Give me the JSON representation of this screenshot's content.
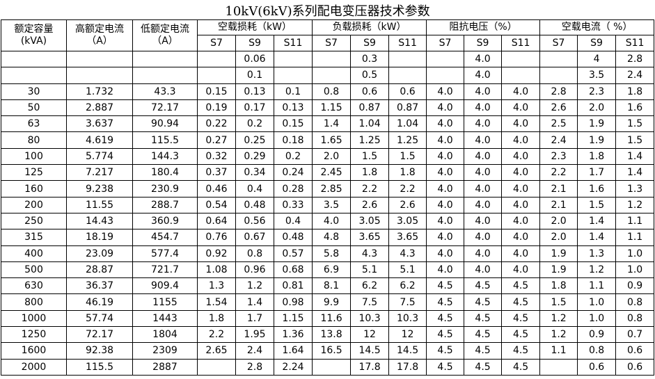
{
  "title": "10kV(6kV)系列配电变压器技术参数",
  "header": {
    "fixed": [
      {
        "label": "额定容量",
        "unit": "(kVA)"
      },
      {
        "label": "高额定电流",
        "unit": "（A）"
      },
      {
        "label": "低额定电流",
        "unit": "（A）"
      }
    ],
    "groups": [
      {
        "label": "空载损耗（kW）",
        "sub": [
          "S7",
          "S9",
          "S11"
        ]
      },
      {
        "label": "负载损耗（kW）",
        "sub": [
          "S7",
          "S9",
          "S11"
        ]
      },
      {
        "label": "阻抗电压（%）",
        "sub": [
          "S7",
          "S9",
          "S11"
        ]
      },
      {
        "label": "空载电流（ %）",
        "sub": [
          "S7",
          "S9",
          "S11"
        ]
      }
    ]
  },
  "table": {
    "rows": [
      [
        null,
        null,
        null,
        null,
        "0.06",
        null,
        null,
        "0.3",
        null,
        null,
        "4.0",
        null,
        null,
        "4",
        "2.8"
      ],
      [
        null,
        null,
        null,
        null,
        "0.1",
        null,
        null,
        "0.5",
        null,
        null,
        "4.0",
        null,
        null,
        "3.5",
        "2.4"
      ],
      [
        "30",
        "1.732",
        "43.3",
        "0.15",
        "0.13",
        "0.1",
        "0.8",
        "0.6",
        "0.6",
        "4.0",
        "4.0",
        "4.0",
        "2.8",
        "2.3",
        "1.8"
      ],
      [
        "50",
        "2.887",
        "72.17",
        "0.19",
        "0.17",
        "0.13",
        "1.15",
        "0.87",
        "0.87",
        "4.0",
        "4.0",
        "4.0",
        "2.6",
        "2.0",
        "1.6"
      ],
      [
        "63",
        "3.637",
        "90.94",
        "0.22",
        "0.2",
        "0.15",
        "1.4",
        "1.04",
        "1.04",
        "4.0",
        "4.0",
        "4.0",
        "2.5",
        "1.9",
        "1.5"
      ],
      [
        "80",
        "4.619",
        "115.5",
        "0.27",
        "0.25",
        "0.18",
        "1.65",
        "1.25",
        "1.25",
        "4.0",
        "4.0",
        "4.0",
        "2.4",
        "1.9",
        "1.5"
      ],
      [
        "100",
        "5.774",
        "144.3",
        "0.32",
        "0.29",
        "0.2",
        "2.0",
        "1.5",
        "1.5",
        "4.0",
        "4.0",
        "4.0",
        "2.3",
        "1.8",
        "1.4"
      ],
      [
        "125",
        "7.217",
        "180.4",
        "0.37",
        "0.34",
        "0.24",
        "2.45",
        "1.8",
        "1.8",
        "4.0",
        "4.0",
        "4.0",
        "2.2",
        "1.7",
        "1.4"
      ],
      [
        "160",
        "9.238",
        "230.9",
        "0.46",
        "0.4",
        "0.28",
        "2.85",
        "2.2",
        "2.2",
        "4.0",
        "4.0",
        "4.0",
        "2.1",
        "1.6",
        "1.3"
      ],
      [
        "200",
        "11.55",
        "288.7",
        "0.54",
        "0.48",
        "0.33",
        "3.5",
        "2.6",
        "2.6",
        "4.0",
        "4.0",
        "4.0",
        "2.1",
        "1.5",
        "1.2"
      ],
      [
        "250",
        "14.43",
        "360.9",
        "0.64",
        "0.56",
        "0.4",
        "4.0",
        "3.05",
        "3.05",
        "4.0",
        "4.0",
        "4.0",
        "2.0",
        "1.4",
        "1.1"
      ],
      [
        "315",
        "18.19",
        "454.7",
        "0.76",
        "0.67",
        "0.48",
        "4.8",
        "3.65",
        "3.65",
        "4.0",
        "4.0",
        "4.0",
        "2.0",
        "1.4",
        "1.1"
      ],
      [
        "400",
        "23.09",
        "577.4",
        "0.92",
        "0.8",
        "0.57",
        "5.8",
        "4.3",
        "4.3",
        "4.0",
        "4.0",
        "4.0",
        "1.9",
        "1.3",
        "1.0"
      ],
      [
        "500",
        "28.87",
        "721.7",
        "1.08",
        "0.96",
        "0.68",
        "6.9",
        "5.1",
        "5.1",
        "4.0",
        "4.0",
        "4.0",
        "1.9",
        "1.2",
        "1.0"
      ],
      [
        "630",
        "36.37",
        "909.4",
        "1.3",
        "1.2",
        "0.81",
        "8.1",
        "6.2",
        "6.2",
        "4.5",
        "4.5",
        "4.5",
        "1.8",
        "1.1",
        "0.9"
      ],
      [
        "800",
        "46.19",
        "1155",
        "1.54",
        "1.4",
        "0.98",
        "9.9",
        "7.5",
        "7.5",
        "4.5",
        "4.5",
        "4.5",
        "1.5",
        "1.0",
        "0.8"
      ],
      [
        "1000",
        "57.74",
        "1443",
        "1.8",
        "1.7",
        "1.15",
        "11.6",
        "10.3",
        "10.3",
        "4.5",
        "4.5",
        "4.5",
        "1.2",
        "1.0",
        "0.8"
      ],
      [
        "1250",
        "72.17",
        "1804",
        "2.2",
        "1.95",
        "1.36",
        "13.8",
        "12",
        "12",
        "4.5",
        "4.5",
        "4.5",
        "1.2",
        "0.9",
        "0.7"
      ],
      [
        "1600",
        "92.38",
        "2309",
        "2.65",
        "2.4",
        "1.64",
        "16.5",
        "14.5",
        "14.5",
        "4.5",
        "4.5",
        "4.5",
        "1.1",
        "0.8",
        "0.6"
      ],
      [
        "2000",
        "115.5",
        "2887",
        null,
        "2.8",
        "2.24",
        null,
        "17.8",
        "17.8",
        "4.5",
        "4.5",
        "4.5",
        null,
        "0.6",
        "0.6"
      ]
    ]
  }
}
